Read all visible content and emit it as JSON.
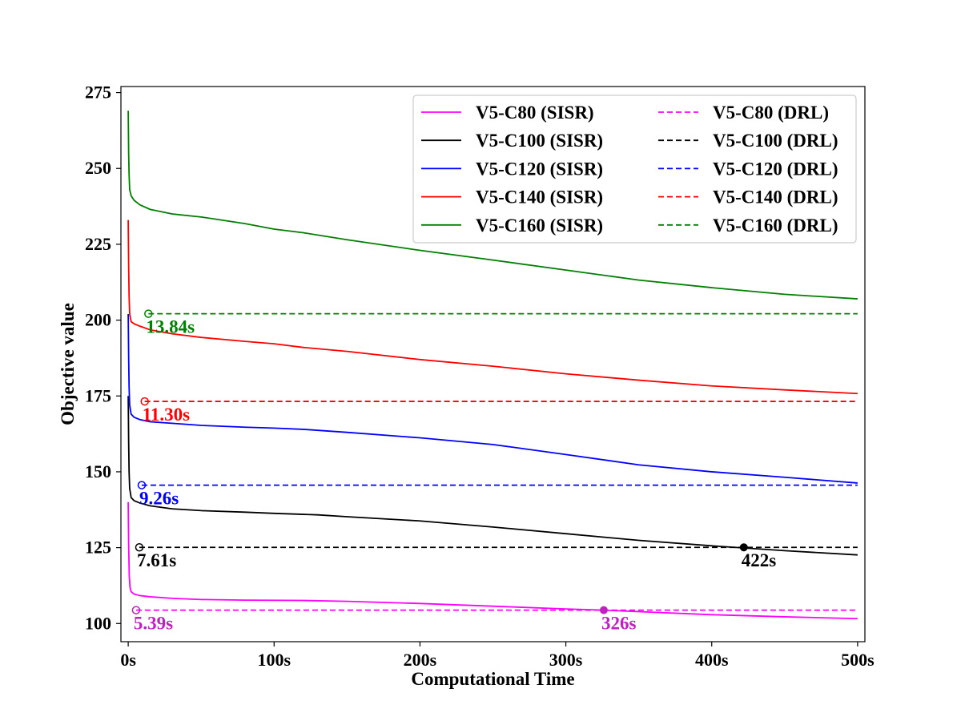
{
  "chart_data": {
    "type": "line",
    "title": "",
    "xlabel": "Computational Time",
    "ylabel": "Objective value",
    "xlim": [
      -5,
      505
    ],
    "ylim": [
      94,
      277
    ],
    "xticks": [
      0,
      100,
      200,
      300,
      400,
      500
    ],
    "xtick_labels": [
      "0s",
      "100s",
      "200s",
      "300s",
      "400s",
      "500s"
    ],
    "yticks": [
      100,
      125,
      150,
      175,
      200,
      225,
      250,
      275
    ],
    "ytick_labels": [
      "100",
      "125",
      "150",
      "175",
      "200",
      "225",
      "250",
      "275"
    ],
    "grid": false,
    "legend_position": "top-right",
    "legend_columns": 2,
    "series": [
      {
        "name": "V5-C80 (SISR)",
        "style": "solid",
        "color": "#ff00ff",
        "points": [
          [
            0,
            140
          ],
          [
            0.3,
            126
          ],
          [
            0.7,
            116
          ],
          [
            1.2,
            112
          ],
          [
            2,
            110.5
          ],
          [
            4,
            109.7
          ],
          [
            8,
            109.2
          ],
          [
            15,
            108.8
          ],
          [
            30,
            108.3
          ],
          [
            50,
            107.9
          ],
          [
            80,
            107.7
          ],
          [
            120,
            107.6
          ],
          [
            150,
            107.3
          ],
          [
            200,
            106.6
          ],
          [
            250,
            105.7
          ],
          [
            300,
            104.8
          ],
          [
            326,
            104.4
          ],
          [
            350,
            103.9
          ],
          [
            400,
            102.9
          ],
          [
            450,
            102.2
          ],
          [
            500,
            101.6
          ]
        ]
      },
      {
        "name": "V5-C100 (SISR)",
        "style": "solid",
        "color": "#000000",
        "points": [
          [
            0,
            175
          ],
          [
            0.3,
            160
          ],
          [
            0.6,
            150
          ],
          [
            1,
            144.5
          ],
          [
            2,
            141.5
          ],
          [
            4,
            140.5
          ],
          [
            8,
            139.7
          ],
          [
            15,
            138.8
          ],
          [
            30,
            137.8
          ],
          [
            50,
            137.2
          ],
          [
            80,
            136.7
          ],
          [
            100,
            136.3
          ],
          [
            130,
            135.8
          ],
          [
            150,
            135.2
          ],
          [
            200,
            133.8
          ],
          [
            250,
            131.8
          ],
          [
            300,
            129.6
          ],
          [
            350,
            127.4
          ],
          [
            400,
            125.6
          ],
          [
            422,
            124.9
          ],
          [
            450,
            124
          ],
          [
            500,
            122.6
          ]
        ]
      },
      {
        "name": "V5-C120 (SISR)",
        "style": "solid",
        "color": "#0000ff",
        "points": [
          [
            0,
            202
          ],
          [
            0.3,
            188
          ],
          [
            0.6,
            178
          ],
          [
            1,
            172
          ],
          [
            2,
            169
          ],
          [
            4,
            168
          ],
          [
            8,
            167.2
          ],
          [
            15,
            166.5
          ],
          [
            30,
            166
          ],
          [
            50,
            165.3
          ],
          [
            80,
            164.7
          ],
          [
            100,
            164.4
          ],
          [
            120,
            164
          ],
          [
            150,
            163
          ],
          [
            200,
            161.2
          ],
          [
            250,
            159
          ],
          [
            300,
            155.7
          ],
          [
            350,
            152.3
          ],
          [
            400,
            150
          ],
          [
            450,
            148.2
          ],
          [
            500,
            146.3
          ]
        ]
      },
      {
        "name": "V5-C140 (SISR)",
        "style": "solid",
        "color": "#ff0000",
        "points": [
          [
            0,
            233
          ],
          [
            0.3,
            218
          ],
          [
            0.6,
            208
          ],
          [
            1,
            202
          ],
          [
            2,
            199.5
          ],
          [
            4,
            198.8
          ],
          [
            8,
            198
          ],
          [
            15,
            196.8
          ],
          [
            30,
            195.5
          ],
          [
            50,
            194.3
          ],
          [
            80,
            193
          ],
          [
            100,
            192.2
          ],
          [
            120,
            191
          ],
          [
            150,
            189.7
          ],
          [
            200,
            187
          ],
          [
            250,
            184.8
          ],
          [
            300,
            182.3
          ],
          [
            350,
            180.2
          ],
          [
            400,
            178.3
          ],
          [
            450,
            177
          ],
          [
            500,
            175.8
          ]
        ]
      },
      {
        "name": "V5-C160 (SISR)",
        "style": "solid",
        "color": "#008000",
        "points": [
          [
            0,
            269
          ],
          [
            0.3,
            255
          ],
          [
            0.6,
            248
          ],
          [
            1,
            243
          ],
          [
            2,
            241
          ],
          [
            4,
            239.5
          ],
          [
            8,
            238
          ],
          [
            15,
            236.5
          ],
          [
            30,
            235
          ],
          [
            50,
            234
          ],
          [
            80,
            231.8
          ],
          [
            100,
            230
          ],
          [
            120,
            228.8
          ],
          [
            150,
            226.5
          ],
          [
            200,
            223
          ],
          [
            250,
            219.8
          ],
          [
            300,
            216.5
          ],
          [
            350,
            213.2
          ],
          [
            400,
            210.7
          ],
          [
            450,
            208.5
          ],
          [
            500,
            207
          ]
        ]
      },
      {
        "name": "V5-C80 (DRL)",
        "style": "dashed",
        "color": "#ff00ff",
        "points": [
          [
            5.39,
            104.4
          ],
          [
            500,
            104.4
          ]
        ]
      },
      {
        "name": "V5-C100 (DRL)",
        "style": "dashed",
        "color": "#000000",
        "points": [
          [
            7.61,
            125.1
          ],
          [
            500,
            125.1
          ]
        ]
      },
      {
        "name": "V5-C120 (DRL)",
        "style": "dashed",
        "color": "#0000ff",
        "points": [
          [
            9.26,
            145.6
          ],
          [
            500,
            145.6
          ]
        ]
      },
      {
        "name": "V5-C140 (DRL)",
        "style": "dashed",
        "color": "#ff0000",
        "points": [
          [
            11.3,
            173.2
          ],
          [
            500,
            173.2
          ]
        ]
      },
      {
        "name": "V5-C160 (DRL)",
        "style": "dashed",
        "color": "#008000",
        "points": [
          [
            13.84,
            202.1
          ],
          [
            500,
            202.1
          ]
        ]
      }
    ],
    "annotations": [
      {
        "text": "5.39s",
        "x": 5.39,
        "y": 104.4,
        "marker": "open-circle",
        "color": "#c020c0"
      },
      {
        "text": "7.61s",
        "x": 7.61,
        "y": 125.1,
        "marker": "open-circle",
        "color": "#000000"
      },
      {
        "text": "9.26s",
        "x": 9.26,
        "y": 145.6,
        "marker": "open-circle",
        "color": "#0000ff"
      },
      {
        "text": "11.30s",
        "x": 11.3,
        "y": 173.2,
        "marker": "open-circle",
        "color": "#ff0000"
      },
      {
        "text": "13.84s",
        "x": 13.84,
        "y": 202.1,
        "marker": "open-circle",
        "color": "#008000"
      },
      {
        "text": "326s",
        "x": 326,
        "y": 104.4,
        "marker": "filled-circle",
        "color": "#c020c0"
      },
      {
        "text": "422s",
        "x": 422,
        "y": 125.1,
        "marker": "filled-circle",
        "color": "#000000"
      }
    ]
  }
}
